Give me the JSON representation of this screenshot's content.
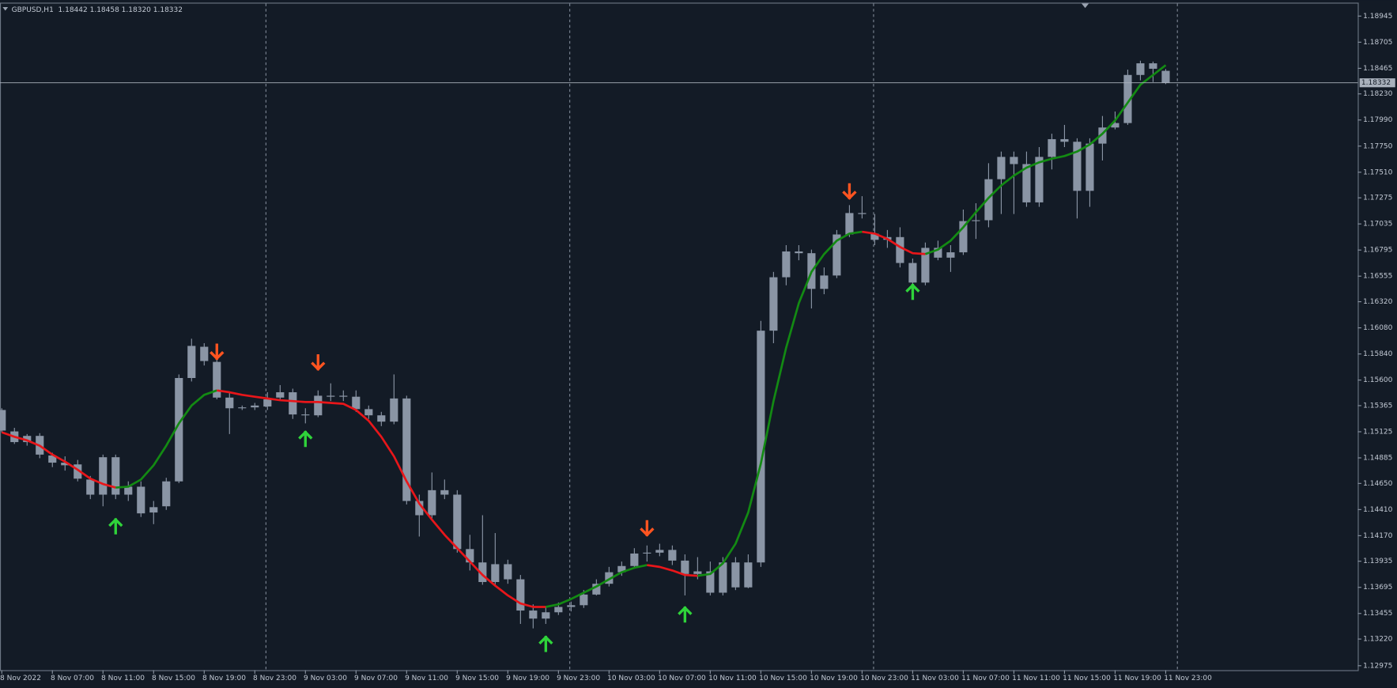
{
  "chart_data": {
    "type": "candlestick",
    "title": "GBPUSD,H1  1.18442 1.18458 1.18320 1.18332",
    "categories": [
      "8 Nov 2022",
      null,
      null,
      null,
      "8 Nov 07:00",
      null,
      null,
      null,
      "8 Nov 11:00",
      null,
      null,
      null,
      "8 Nov 15:00",
      null,
      null,
      null,
      "8 Nov 19:00",
      null,
      null,
      null,
      "8 Nov 23:00",
      null,
      null,
      null,
      "9 Nov 03:00",
      null,
      null,
      null,
      "9 Nov 07:00",
      null,
      null,
      null,
      "9 Nov 11:00",
      null,
      null,
      null,
      "9 Nov 15:00",
      null,
      null,
      null,
      "9 Nov 19:00",
      null,
      null,
      null,
      "9 Nov 23:00",
      null,
      null,
      null,
      "10 Nov 03:00",
      null,
      null,
      null,
      "10 Nov 07:00",
      null,
      null,
      null,
      "10 Nov 11:00",
      null,
      null,
      null,
      "10 Nov 15:00",
      null,
      null,
      null,
      "10 Nov 19:00",
      null,
      null,
      null,
      "10 Nov 23:00",
      null,
      null,
      null,
      "11 Nov 03:00",
      null,
      null,
      null,
      "11 Nov 07:00",
      null,
      null,
      null,
      "11 Nov 11:00",
      null,
      null,
      null,
      "11 Nov 15:00",
      null,
      null,
      null,
      "11 Nov 19:00",
      null,
      null,
      null,
      "11 Nov 23:00"
    ],
    "open": [
      1.15325,
      1.15128,
      1.1503,
      1.15087,
      1.14907,
      1.14841,
      1.14825,
      1.14686,
      1.14547,
      1.14891,
      1.14547,
      1.1462,
      1.14383,
      1.1444,
      1.14669,
      1.15619,
      1.15906,
      1.15767,
      1.15439,
      1.15341,
      1.15349,
      1.15357,
      1.15439,
      1.15488,
      1.15284,
      1.15276,
      1.15456,
      1.15447,
      1.15447,
      1.15333,
      1.15276,
      1.15218,
      1.15431,
      1.14489,
      1.14358,
      1.14588,
      1.14547,
      1.14047,
      1.13924,
      1.13744,
      1.13908,
      1.13769,
      1.13482,
      1.13408,
      1.13466,
      1.13515,
      1.13531,
      1.13629,
      1.13728,
      1.13834,
      1.13891,
      1.14006,
      1.14014,
      1.14039,
      1.13941,
      1.13818,
      1.13842,
      1.13646,
      1.13924,
      1.13695,
      1.13924,
      1.16054,
      1.16545,
      1.16782,
      1.16766,
      1.16438,
      1.16561,
      1.16938,
      1.17135,
      1.16946,
      1.16889,
      1.16914,
      1.16676,
      1.16496,
      1.16815,
      1.16725,
      1.16774,
      1.17061,
      1.17069,
      1.17446,
      1.17651,
      1.17585,
      1.17233,
      1.17651,
      1.17814,
      1.1779,
      1.17339,
      1.17773,
      1.17921,
      1.17962,
      1.18404,
      1.18511,
      1.18442
    ],
    "high": [
      1.15341,
      1.15161,
      1.15104,
      1.15112,
      1.14932,
      1.14899,
      1.14866,
      1.14719,
      1.14915,
      1.14915,
      1.14669,
      1.14669,
      1.14489,
      1.14702,
      1.15652,
      1.1598,
      1.15939,
      1.15898,
      1.15488,
      1.15366,
      1.1539,
      1.15488,
      1.15554,
      1.15521,
      1.15341,
      1.15505,
      1.1557,
      1.15505,
      1.15505,
      1.15366,
      1.15308,
      1.15652,
      1.15456,
      1.14547,
      1.14751,
      1.14686,
      1.14588,
      1.14178,
      1.14358,
      1.14194,
      1.13949,
      1.13809,
      1.13539,
      1.13523,
      1.13556,
      1.13564,
      1.1367,
      1.13769,
      1.13883,
      1.13932,
      1.14055,
      1.1408,
      1.14096,
      1.1408,
      1.13998,
      1.13973,
      1.13932,
      1.13973,
      1.13973,
      1.13998,
      1.16144,
      1.16594,
      1.1684,
      1.1684,
      1.16799,
      1.16635,
      1.16979,
      1.17208,
      1.1729,
      1.17126,
      1.16979,
      1.17004,
      1.16717,
      1.16864,
      1.16881,
      1.1684,
      1.17167,
      1.17225,
      1.17593,
      1.177,
      1.177,
      1.177,
      1.17741,
      1.17864,
      1.17945,
      1.17822,
      1.17822,
      1.18027,
      1.18068,
      1.18453,
      1.18535,
      1.18527,
      1.18458
    ],
    "low": [
      1.1512,
      1.15013,
      1.14997,
      1.14882,
      1.148,
      1.14768,
      1.14669,
      1.14506,
      1.1444,
      1.14506,
      1.14489,
      1.14342,
      1.14276,
      1.14407,
      1.14653,
      1.15587,
      1.15734,
      1.15423,
      1.15104,
      1.15325,
      1.15325,
      1.15325,
      1.15423,
      1.15243,
      1.15202,
      1.15259,
      1.15407,
      1.15407,
      1.15308,
      1.15243,
      1.15177,
      1.15194,
      1.14457,
      1.14162,
      1.14325,
      1.14506,
      1.14014,
      1.1385,
      1.13719,
      1.13703,
      1.13728,
      1.13359,
      1.13318,
      1.13359,
      1.13441,
      1.13474,
      1.13506,
      1.13621,
      1.13703,
      1.13801,
      1.13867,
      1.13932,
      1.13981,
      1.139,
      1.13621,
      1.13769,
      1.13621,
      1.13621,
      1.1367,
      1.13687,
      1.13883,
      1.15939,
      1.16471,
      1.16701,
      1.16258,
      1.16389,
      1.16537,
      1.16914,
      1.17085,
      1.1684,
      1.16815,
      1.16635,
      1.16455,
      1.16471,
      1.16701,
      1.16594,
      1.1675,
      1.16897,
      1.17004,
      1.17126,
      1.17126,
      1.17192,
      1.17192,
      1.17536,
      1.17741,
      1.17085,
      1.17192,
      1.17618,
      1.17904,
      1.17945,
      1.18355,
      1.18339,
      1.1832
    ],
    "close": [
      1.15136,
      1.1503,
      1.15087,
      1.14915,
      1.14841,
      1.14817,
      1.14694,
      1.14547,
      1.14891,
      1.14547,
      1.1462,
      1.14375,
      1.14432,
      1.14669,
      1.15619,
      1.15914,
      1.15775,
      1.15439,
      1.15341,
      1.15349,
      1.15366,
      1.15423,
      1.15488,
      1.15284,
      1.15276,
      1.15456,
      1.15447,
      1.15456,
      1.15333,
      1.15276,
      1.15218,
      1.15431,
      1.14489,
      1.14358,
      1.14588,
      1.14547,
      1.14047,
      1.13924,
      1.13744,
      1.13908,
      1.13769,
      1.13482,
      1.13408,
      1.13466,
      1.13515,
      1.13531,
      1.13629,
      1.13728,
      1.13834,
      1.13891,
      1.14006,
      1.14014,
      1.14039,
      1.13941,
      1.13818,
      1.13842,
      1.13646,
      1.13924,
      1.13695,
      1.13924,
      1.16054,
      1.16545,
      1.16782,
      1.16766,
      1.16438,
      1.16561,
      1.16938,
      1.17135,
      1.17126,
      1.16889,
      1.16914,
      1.16676,
      1.16496,
      1.16815,
      1.16725,
      1.16774,
      1.17061,
      1.17069,
      1.17446,
      1.17651,
      1.17585,
      1.17233,
      1.17651,
      1.17814,
      1.1779,
      1.17339,
      1.17773,
      1.17921,
      1.17962,
      1.18404,
      1.18511,
      1.18461,
      1.18332
    ],
    "candle_color": "#8a95a5",
    "ma_values": [
      1.1512,
      1.15079,
      1.15046,
      1.14997,
      1.14915,
      1.1485,
      1.14776,
      1.14694,
      1.14645,
      1.14612,
      1.1462,
      1.14686,
      1.14817,
      1.14997,
      1.15202,
      1.15366,
      1.15464,
      1.15505,
      1.15488,
      1.15464,
      1.15447,
      1.15431,
      1.15415,
      1.15407,
      1.15398,
      1.15398,
      1.1539,
      1.15382,
      1.15325,
      1.15226,
      1.15079,
      1.14899,
      1.14669,
      1.14465,
      1.14317,
      1.14178,
      1.14055,
      1.13932,
      1.13809,
      1.13711,
      1.13621,
      1.13547,
      1.13515,
      1.13515,
      1.13539,
      1.13588,
      1.13646,
      1.13703,
      1.13769,
      1.13834,
      1.13875,
      1.139,
      1.13883,
      1.1385,
      1.13809,
      1.13801,
      1.13818,
      1.13916,
      1.14096,
      1.14383,
      1.14833,
      1.15407,
      1.15898,
      1.16307,
      1.16594,
      1.16758,
      1.16881,
      1.16946,
      1.16963,
      1.16946,
      1.16897,
      1.16823,
      1.16766,
      1.16758,
      1.16799,
      1.16881,
      1.17004,
      1.17143,
      1.17274,
      1.17389,
      1.17479,
      1.17552,
      1.17601,
      1.17634,
      1.17659,
      1.177,
      1.17765,
      1.17864,
      1.17986,
      1.1815,
      1.18314,
      1.18404,
      1.18494
    ],
    "ma_up_color": "#138a13",
    "ma_down_color": "#e8161a",
    "buy_arrows": [
      null,
      null,
      null,
      null,
      null,
      null,
      null,
      null,
      null,
      1.1426,
      null,
      null,
      null,
      null,
      null,
      null,
      null,
      null,
      null,
      null,
      null,
      null,
      null,
      null,
      1.15063,
      null,
      null,
      null,
      null,
      null,
      null,
      null,
      null,
      null,
      null,
      null,
      null,
      null,
      null,
      null,
      null,
      null,
      null,
      1.13179,
      null,
      null,
      null,
      null,
      null,
      null,
      null,
      null,
      null,
      null,
      1.13449,
      null,
      null,
      null,
      null,
      null,
      null,
      null,
      null,
      null,
      null,
      null,
      null,
      null,
      null,
      null,
      null,
      null,
      1.16414,
      null,
      null,
      null,
      null,
      null,
      null,
      null,
      null,
      null,
      null,
      null,
      null,
      null,
      null,
      null,
      null,
      null,
      null,
      null,
      null
    ],
    "sell_arrows": [
      null,
      null,
      null,
      null,
      null,
      null,
      null,
      null,
      null,
      null,
      null,
      null,
      null,
      null,
      null,
      null,
      null,
      1.15857,
      null,
      null,
      null,
      null,
      null,
      null,
      null,
      1.15759,
      null,
      null,
      null,
      null,
      null,
      null,
      null,
      null,
      null,
      null,
      null,
      null,
      null,
      null,
      null,
      null,
      null,
      null,
      null,
      null,
      null,
      null,
      null,
      null,
      null,
      1.14235,
      null,
      null,
      null,
      null,
      null,
      null,
      null,
      null,
      null,
      null,
      null,
      null,
      null,
      null,
      null,
      1.17331,
      null,
      null,
      null,
      null,
      null,
      null,
      null,
      null,
      null,
      null,
      null,
      null,
      null,
      null,
      null,
      null,
      null,
      null,
      null,
      null,
      null,
      null,
      null
    ],
    "buy_color": "#2fd33a",
    "sell_color": "#ff5420",
    "price_line": {
      "value": 1.18332,
      "label": "1.18332"
    },
    "ylim": [
      1.12934,
      1.1906
    ],
    "yticks": [
      1.18945,
      1.18705,
      1.18465,
      {
        "value": 1.1823,
        "label": "1.18230"
      },
      {
        "value": 1.1799,
        "label": "1.17990"
      },
      {
        "value": 1.1775,
        "label": "1.17750"
      },
      {
        "value": 1.1751,
        "label": "1.17510"
      },
      1.17275,
      1.17035,
      1.16795,
      1.16555,
      {
        "value": 1.1632,
        "label": "1.16320"
      },
      {
        "value": 1.1608,
        "label": "1.16080"
      },
      {
        "value": 1.1584,
        "label": "1.15840"
      },
      {
        "value": 1.156,
        "label": "1.15600"
      },
      1.15365,
      1.15125,
      1.14885,
      {
        "value": 1.1465,
        "label": "1.14650"
      },
      {
        "value": 1.1441,
        "label": "1.14410"
      },
      {
        "value": 1.1417,
        "label": "1.14170"
      },
      1.13935,
      1.13695,
      1.13455,
      {
        "value": 1.1322,
        "label": "1.13220"
      },
      1.12975
    ]
  }
}
